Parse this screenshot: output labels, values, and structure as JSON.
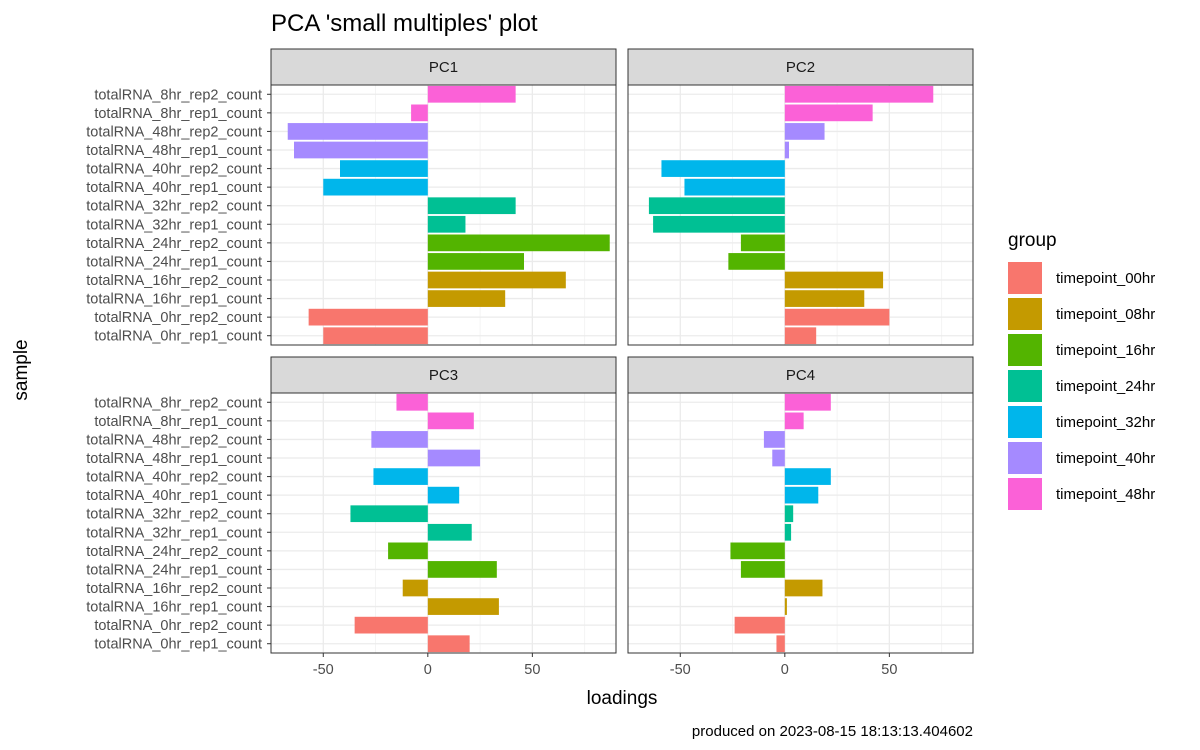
{
  "chart_data": {
    "type": "bar",
    "orientation": "horizontal",
    "title": "PCA 'small multiples' plot",
    "xlabel": "loadings",
    "ylabel": "sample",
    "caption": "produced on 2023-08-15 18:13:13.404602",
    "xlim": [
      -75,
      90
    ],
    "x_ticks": [
      -50,
      0,
      50
    ],
    "grid": true,
    "legend": {
      "title": "group",
      "placement": "right"
    },
    "categories": [
      "totalRNA_0hr_rep1_count",
      "totalRNA_0hr_rep2_count",
      "totalRNA_16hr_rep1_count",
      "totalRNA_16hr_rep2_count",
      "totalRNA_24hr_rep1_count",
      "totalRNA_24hr_rep2_count",
      "totalRNA_32hr_rep1_count",
      "totalRNA_32hr_rep2_count",
      "totalRNA_40hr_rep1_count",
      "totalRNA_40hr_rep2_count",
      "totalRNA_48hr_rep1_count",
      "totalRNA_48hr_rep2_count",
      "totalRNA_8hr_rep1_count",
      "totalRNA_8hr_rep2_count"
    ],
    "category_groups": [
      "timepoint_00hr",
      "timepoint_00hr",
      "timepoint_08hr",
      "timepoint_08hr",
      "timepoint_16hr",
      "timepoint_16hr",
      "timepoint_24hr",
      "timepoint_24hr",
      "timepoint_32hr",
      "timepoint_32hr",
      "timepoint_40hr",
      "timepoint_40hr",
      "timepoint_48hr",
      "timepoint_48hr"
    ],
    "groups": [
      {
        "name": "timepoint_00hr",
        "color": "#F8766D"
      },
      {
        "name": "timepoint_08hr",
        "color": "#C49A00"
      },
      {
        "name": "timepoint_16hr",
        "color": "#53B400"
      },
      {
        "name": "timepoint_24hr",
        "color": "#00C094"
      },
      {
        "name": "timepoint_32hr",
        "color": "#00B6EB"
      },
      {
        "name": "timepoint_40hr",
        "color": "#A58AFF"
      },
      {
        "name": "timepoint_48hr",
        "color": "#FB61D7"
      }
    ],
    "panels": [
      {
        "name": "PC1",
        "values": [
          -50,
          -57,
          37,
          66,
          46,
          87,
          18,
          42,
          -50,
          -42,
          -64,
          -67,
          -8,
          42
        ]
      },
      {
        "name": "PC2",
        "values": [
          15,
          50,
          38,
          47,
          -27,
          -21,
          -63,
          -65,
          -48,
          -59,
          2,
          19,
          42,
          71
        ]
      },
      {
        "name": "PC3",
        "values": [
          20,
          -35,
          34,
          -12,
          33,
          -19,
          21,
          -37,
          15,
          -26,
          25,
          -27,
          22,
          -15
        ]
      },
      {
        "name": "PC4",
        "values": [
          -4,
          -24,
          1,
          18,
          -21,
          -26,
          3,
          4,
          16,
          22,
          -6,
          -10,
          9,
          22
        ]
      }
    ]
  }
}
